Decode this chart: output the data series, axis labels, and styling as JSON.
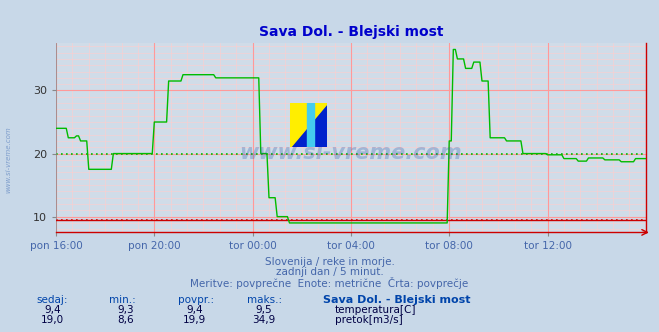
{
  "title": "Sava Dol. - Blejski most",
  "title_color": "#0000cc",
  "bg_color": "#c8d8e8",
  "plot_bg_color": "#d0dce8",
  "grid_h_color": "#ff9999",
  "grid_v_color": "#ff9999",
  "grid_dotted_color": "#ffcccc",
  "xlabel_color": "#4466aa",
  "x_tick_labels": [
    "pon 16:00",
    "pon 20:00",
    "tor 00:00",
    "tor 04:00",
    "tor 08:00",
    "tor 12:00"
  ],
  "x_tick_positions": [
    0,
    48,
    96,
    144,
    192,
    240
  ],
  "y_ticks": [
    10,
    20,
    30
  ],
  "ylim": [
    7.5,
    37.5
  ],
  "xlim": [
    0,
    288
  ],
  "footer_line1": "Slovenija / reke in morje.",
  "footer_line2": "zadnji dan / 5 minut.",
  "footer_line3": "Meritve: povprečne  Enote: metrične  Črta: povprečje",
  "footer_color": "#4466aa",
  "table_header": [
    "sedaj:",
    "min.:",
    "povpr.:",
    "maks.:",
    "Sava Dol. - Blejski most"
  ],
  "table_row1": [
    "9,4",
    "9,3",
    "9,4",
    "9,5"
  ],
  "table_row2": [
    "19,0",
    "8,6",
    "19,9",
    "34,9"
  ],
  "table_label1": "temperatura[C]",
  "table_label2": "pretok[m3/s]",
  "table_color1": "#cc0000",
  "table_color2": "#00cc00",
  "table_header_color": "#0044aa",
  "table_value_color": "#000044",
  "watermark": "www.si-vreme.com",
  "watermark_color": "#2255aa",
  "watermark_alpha": 0.28,
  "temp_color": "#cc0000",
  "flow_color": "#00bb00",
  "temp_avg": 9.4,
  "flow_avg": 19.9
}
